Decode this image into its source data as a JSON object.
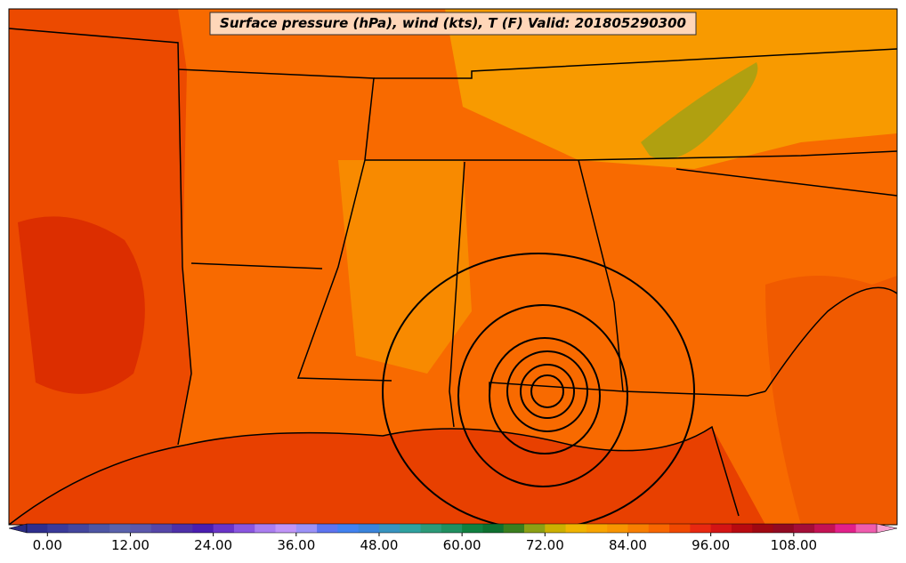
{
  "title": "Surface pressure (hPa), wind (kts), T (F) Valid: 201805290300",
  "colorbar": {
    "lim": [
      -3,
      120
    ],
    "colors": [
      "#2e2e8e",
      "#3a3a9a",
      "#44469e",
      "#4e56a4",
      "#5a62ac",
      "#5c58ac",
      "#5646a8",
      "#4e30a8",
      "#4a1eb0",
      "#6a34c8",
      "#8a56e0",
      "#aa7ef0",
      "#c095f8",
      "#9c92f8",
      "#5e74f0",
      "#4282f0",
      "#3a84dc",
      "#3894c0",
      "#30a2a0",
      "#2c9a78",
      "#209060",
      "#108040",
      "#0e7030",
      "#3a7e1e",
      "#8ca014",
      "#ccb000",
      "#f0b400",
      "#f8a400",
      "#f89400",
      "#f87e00",
      "#f86600",
      "#f04800",
      "#e82810",
      "#d41414",
      "#b80a10",
      "#a00812",
      "#920a22",
      "#a40e38",
      "#c41254",
      "#e2208a",
      "#f05cae"
    ],
    "ticks": [
      {
        "value": 0,
        "label": "0.00"
      },
      {
        "value": 12,
        "label": "12.00"
      },
      {
        "value": 24,
        "label": "24.00"
      },
      {
        "value": 36,
        "label": "36.00"
      },
      {
        "value": 48,
        "label": "48.00"
      },
      {
        "value": 60,
        "label": "60.00"
      },
      {
        "value": 72,
        "label": "72.00"
      },
      {
        "value": 84,
        "label": "84.00"
      },
      {
        "value": 96,
        "label": "96.00"
      },
      {
        "value": 108,
        "label": "108.00"
      }
    ]
  }
}
